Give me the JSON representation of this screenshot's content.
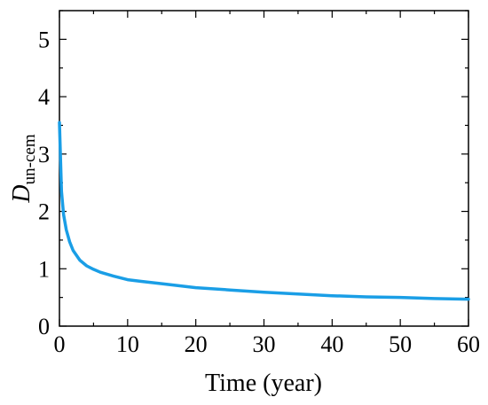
{
  "chart_data": {
    "type": "line",
    "title": "",
    "xlabel": "Time (year)",
    "ylabel": {
      "main": "D",
      "subscript": "un-cem"
    },
    "xlim": [
      0,
      60
    ],
    "ylim": [
      0,
      5.5
    ],
    "x_ticks": [
      "0",
      "10",
      "20",
      "30",
      "40",
      "50",
      "60"
    ],
    "y_ticks": [
      "0",
      "1",
      "2",
      "3",
      "4",
      "5"
    ],
    "grid": false,
    "legend": "none",
    "series": [
      {
        "color": "#1a9ee6",
        "x": [
          0,
          0.3,
          0.6,
          1,
          1.5,
          2,
          3,
          4,
          5,
          6,
          8,
          10,
          12,
          15,
          20,
          25,
          30,
          35,
          40,
          45,
          50,
          55,
          60
        ],
        "y": [
          3.55,
          2.35,
          1.95,
          1.68,
          1.47,
          1.32,
          1.15,
          1.05,
          0.99,
          0.94,
          0.87,
          0.81,
          0.78,
          0.74,
          0.67,
          0.63,
          0.59,
          0.56,
          0.53,
          0.51,
          0.5,
          0.48,
          0.47
        ]
      }
    ]
  }
}
